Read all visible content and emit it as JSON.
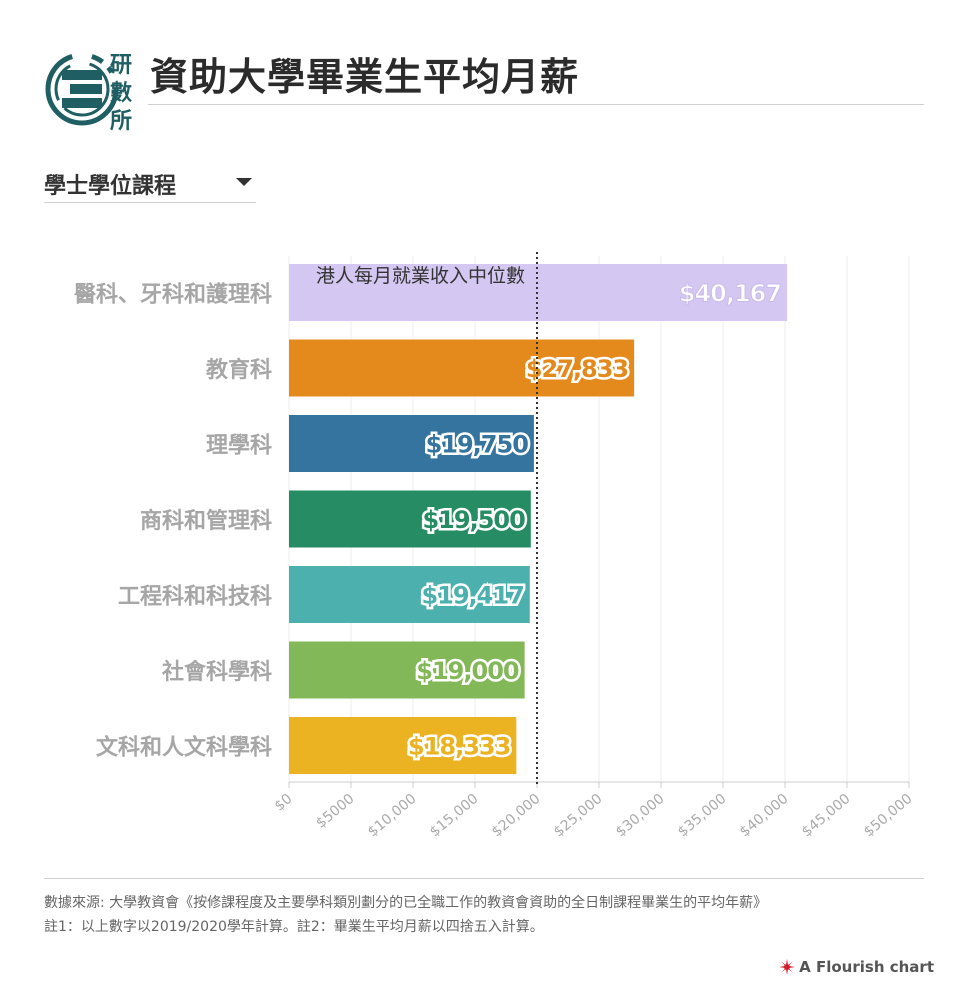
{
  "header": {
    "logo_text": [
      "研",
      "數",
      "所"
    ],
    "title": "資助大學畢業生平均月薪"
  },
  "controls": {
    "dropdown_selected": "學士學位課程"
  },
  "chart_data": {
    "type": "bar",
    "orientation": "horizontal",
    "categories": [
      "醫科、牙科和護理科",
      "教育科",
      "理學科",
      "商科和管理科",
      "工程科和科技科",
      "社會科學科",
      "文科和人文科學科"
    ],
    "values": [
      40167,
      27833,
      19750,
      19500,
      19417,
      19000,
      18333
    ],
    "value_labels": [
      "$40,167",
      "$27,833",
      "$19,750",
      "$19,500",
      "$19,417",
      "$19,000",
      "$18,333"
    ],
    "colors": [
      "#d4c7f2",
      "#e48a1c",
      "#34749f",
      "#268c63",
      "#4cb0ae",
      "#83b858",
      "#ebb222"
    ],
    "xlim": [
      0,
      50000
    ],
    "xticks": [
      0,
      5000,
      10000,
      15000,
      20000,
      25000,
      30000,
      35000,
      40000,
      45000,
      50000
    ],
    "xtick_labels": [
      "$0",
      "$5000",
      "$10,000",
      "$15,000",
      "$20,000",
      "$25,000",
      "$30,000",
      "$35,000",
      "$40,000",
      "$45,000",
      "$50,000"
    ],
    "reference_line": {
      "value": 20000,
      "label": "港人每月就業收入中位數",
      "style": "dotted"
    },
    "grid": true
  },
  "footer": {
    "source": "數據來源: 大學教資會《按修課程度及主要學科類別劃分的已全職工作的教資會資助的全日制課程畢業生的平均年薪》",
    "notes": "註1：以上數字以2019/2020學年計算。註2：畢業生平均月薪以四捨五入計算。",
    "credit": "A Flourish chart"
  },
  "colors": {
    "logo": "#1f5f63",
    "text_dark": "#2b2b2b",
    "category_label": "#a6a6a6",
    "axis": "#cccccc",
    "flourish_red": "#d0202f"
  }
}
